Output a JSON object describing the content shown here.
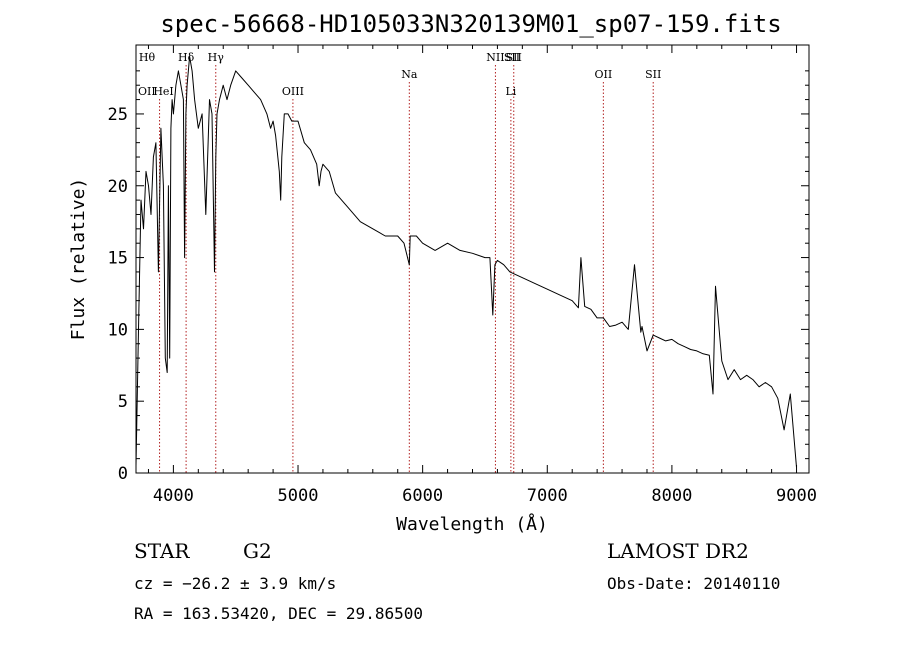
{
  "chart_data": {
    "type": "line",
    "title": "spec-56668-HD105033N320139M01_sp07-159.fits",
    "xlabel": "Wavelength (Å)",
    "ylabel": "Flux (relative)",
    "xlim": [
      3700,
      9100
    ],
    "ylim": [
      0,
      29.8
    ],
    "x_ticks": [
      4000,
      5000,
      6000,
      7000,
      8000,
      9000
    ],
    "y_ticks": [
      0,
      5,
      10,
      15,
      20,
      25
    ],
    "grid": false,
    "series": [
      {
        "x": [
          3700,
          3720,
          3740,
          3760,
          3780,
          3800,
          3820,
          3840,
          3860,
          3880,
          3900,
          3920,
          3935,
          3950,
          3960,
          3970,
          3980,
          3990,
          4000,
          4020,
          4040,
          4060,
          4080,
          4090,
          4100,
          4110,
          4130,
          4150,
          4170,
          4200,
          4230,
          4260,
          4290,
          4310,
          4330,
          4340,
          4350,
          4370,
          4400,
          4430,
          4460,
          4500,
          4550,
          4600,
          4650,
          4700,
          4750,
          4780,
          4800,
          4820,
          4850,
          4861,
          4870,
          4890,
          4920,
          4950,
          5000,
          5050,
          5100,
          5150,
          5170,
          5184,
          5200,
          5250,
          5300,
          5400,
          5500,
          5600,
          5700,
          5800,
          5850,
          5893,
          5900,
          5950,
          6000,
          6100,
          6200,
          6300,
          6400,
          6500,
          6540,
          6563,
          6580,
          6600,
          6650,
          6700,
          6800,
          6900,
          7000,
          7100,
          7200,
          7250,
          7270,
          7300,
          7350,
          7400,
          7450,
          7500,
          7550,
          7600,
          7650,
          7700,
          7750,
          7760,
          7800,
          7850,
          7900,
          7950,
          8000,
          8050,
          8100,
          8150,
          8200,
          8250,
          8300,
          8330,
          8350,
          8400,
          8450,
          8500,
          8550,
          8600,
          8650,
          8700,
          8750,
          8800,
          8850,
          8900,
          8950,
          9000
        ],
        "y": [
          0.5,
          10,
          19,
          17,
          21,
          20,
          18,
          22,
          23,
          14,
          24,
          20,
          8,
          7,
          20,
          8,
          24,
          26,
          25,
          27,
          28,
          27,
          26,
          15,
          25,
          27,
          29,
          28,
          26,
          24,
          25,
          18,
          26,
          25,
          14,
          22,
          25,
          26,
          27,
          26,
          27,
          28,
          27.5,
          27,
          26.5,
          26,
          25,
          24,
          24.5,
          23.5,
          21,
          19,
          22,
          25,
          25,
          24.5,
          24.5,
          23,
          22.5,
          21.5,
          20,
          21,
          21.5,
          21,
          19.5,
          18.5,
          17.5,
          17,
          16.5,
          16.5,
          16,
          14.5,
          16.5,
          16.5,
          16,
          15.5,
          16,
          15.5,
          15.3,
          15,
          15,
          11,
          14.5,
          14.8,
          14.5,
          14,
          13.6,
          13.2,
          12.8,
          12.4,
          12,
          11.5,
          15,
          11.6,
          11.4,
          10.8,
          10.8,
          10.2,
          10.3,
          10.5,
          10,
          14.5,
          9.8,
          10.2,
          8.5,
          9.6,
          9.4,
          9.2,
          9.3,
          9,
          8.8,
          8.6,
          8.5,
          8.3,
          8.2,
          5.5,
          13,
          7.8,
          6.5,
          7.2,
          6.5,
          6.8,
          6.5,
          6,
          6.3,
          6,
          5.2,
          3,
          5.5,
          0.4
        ]
      }
    ],
    "lines": [
      {
        "label": "Hθ",
        "x": 3797,
        "row": 1,
        "marked": false
      },
      {
        "label": "OII",
        "x": 3727,
        "row": 3,
        "marked": false
      },
      {
        "label": "HeI",
        "x": 3889,
        "row": 3,
        "marked": true
      },
      {
        "label": "Hδ",
        "x": 4102,
        "row": 1,
        "marked": true
      },
      {
        "label": "Hγ",
        "x": 4340,
        "row": 1,
        "marked": true
      },
      {
        "label": "OIII",
        "x": 4959,
        "row": 3,
        "marked": true
      },
      {
        "label": "Na",
        "x": 5893,
        "row": 2,
        "marked": true
      },
      {
        "label": "NII",
        "x": 6584,
        "row": 1,
        "marked": true
      },
      {
        "label": "SII",
        "x": 6717,
        "row": 1,
        "marked": false
      },
      {
        "label": "Li",
        "x": 6708,
        "row": 3,
        "marked": true
      },
      {
        "label": "SII",
        "x": 6731,
        "row": 1,
        "marked": true
      },
      {
        "label": "OII",
        "x": 7450,
        "row": 2,
        "marked": true
      },
      {
        "label": "SII",
        "x": 7850,
        "row": 2,
        "marked": true
      }
    ]
  },
  "info": {
    "object_class": "STAR",
    "subclass": "G2",
    "survey": "LAMOST DR2",
    "cz": "cz = −26.2 ± 3.9 km/s",
    "obs_date": "Obs-Date: 20140110",
    "coords": "RA = 163.53420, DEC =  29.86500"
  },
  "colors": {
    "spectrum": "#000000",
    "line_markers": "#b22222",
    "axes": "#000000"
  }
}
